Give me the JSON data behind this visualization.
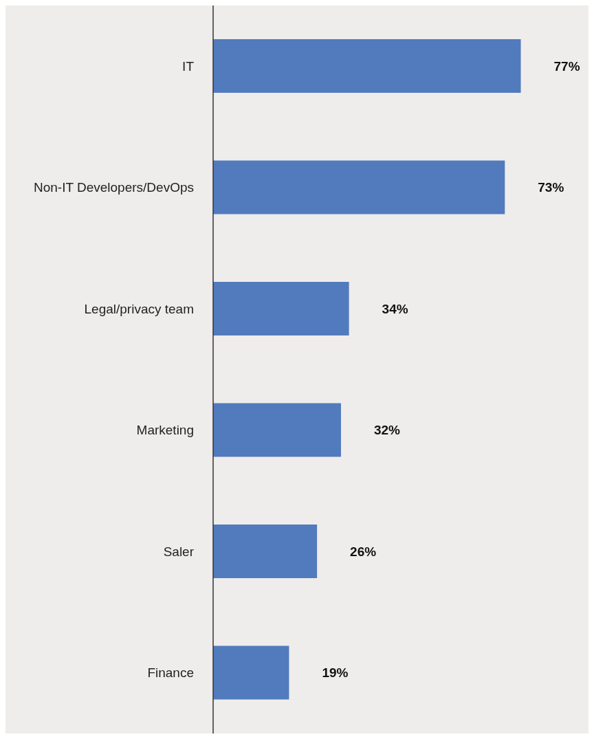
{
  "chart_data": {
    "type": "bar",
    "orientation": "horizontal",
    "categories": [
      "IT",
      "Non-IT Developers/DevOps",
      "Legal/privacy team",
      "Marketing",
      "Saler",
      "Finance"
    ],
    "values": [
      77,
      73,
      34,
      32,
      26,
      19
    ],
    "value_labels": [
      "77%",
      "73%",
      "34%",
      "32%",
      "26%",
      "19%"
    ],
    "color": "#517bbd",
    "grid": false,
    "legend": false
  }
}
